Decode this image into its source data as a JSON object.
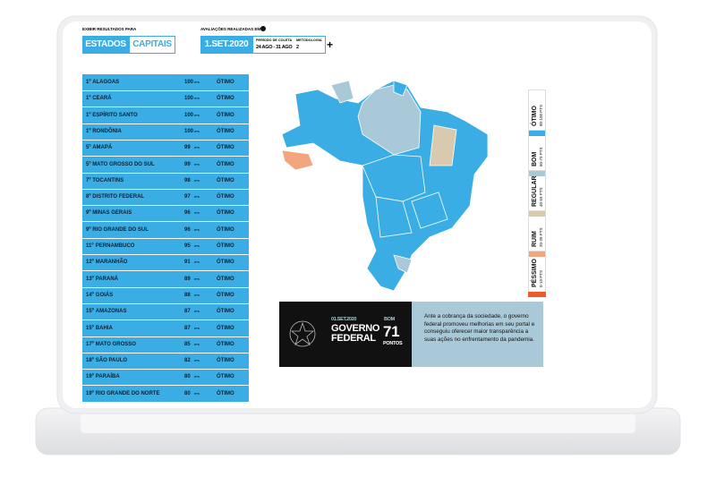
{
  "header": {
    "filter_label": "EXIBIR RESULTADOS PARA",
    "tabs": [
      "ESTADOS",
      "CAPITAIS"
    ],
    "dates_label": "AVALIAÇÕES REALIZADAS EM",
    "date": "1.SET.2020",
    "period_label": "PERÍODO DE COLETA",
    "period": "24 AGO - 31 AGO",
    "method_label": "METODOLOGIA",
    "method": "2",
    "more": "+"
  },
  "table": {
    "rows": [
      [
        "1º",
        "ALAGOAS",
        "100",
        "PTS",
        "ÓTIMO"
      ],
      [
        "1º",
        "CEARÁ",
        "100",
        "PTS",
        "ÓTIMO"
      ],
      [
        "1º",
        "ESPÍRITO SANTO",
        "100",
        "PTS",
        "ÓTIMO"
      ],
      [
        "1º",
        "RONDÔNIA",
        "100",
        "PTS",
        "ÓTIMO"
      ],
      [
        "5º",
        "AMAPÁ",
        "99",
        "PTS",
        "ÓTIMO"
      ],
      [
        "5º",
        "MATO GROSSO DO SUL",
        "99",
        "PTS",
        "ÓTIMO"
      ],
      [
        "7º",
        "TOCANTINS",
        "98",
        "PTS",
        "ÓTIMO"
      ],
      [
        "8º",
        "DISTRITO FEDERAL",
        "97",
        "PTS",
        "ÓTIMO"
      ],
      [
        "9º",
        "MINAS GERAIS",
        "96",
        "PTS",
        "ÓTIMO"
      ],
      [
        "9º",
        "RIO GRANDE DO SUL",
        "96",
        "PTS",
        "ÓTIMO"
      ],
      [
        "11º",
        "PERNAMBUCO",
        "95",
        "PTS",
        "ÓTIMO"
      ],
      [
        "12º",
        "MARANHÃO",
        "91",
        "PTS",
        "ÓTIMO"
      ],
      [
        "13º",
        "PARANÁ",
        "89",
        "PTS",
        "ÓTIMO"
      ],
      [
        "14º",
        "GOIÁS",
        "88",
        "PTS",
        "ÓTIMO"
      ],
      [
        "15º",
        "AMAZONAS",
        "87",
        "PTS",
        "ÓTIMO"
      ],
      [
        "15º",
        "BAHIA",
        "87",
        "PTS",
        "ÓTIMO"
      ],
      [
        "17º",
        "MATO GROSSO",
        "85",
        "PTS",
        "ÓTIMO"
      ],
      [
        "18º",
        "SÃO PAULO",
        "82",
        "PTS",
        "ÓTIMO"
      ],
      [
        "19º",
        "PARAÍBA",
        "80",
        "PTS",
        "ÓTIMO"
      ],
      [
        "19º",
        "RIO GRANDE DO NORTE",
        "80",
        "PTS",
        "ÓTIMO"
      ]
    ]
  },
  "legend": [
    {
      "label": "ÓTIMO",
      "range": "80-100 PTS",
      "color": "#3aaee4"
    },
    {
      "label": "BOM",
      "range": "60-79 PTS",
      "color": "#a9c9d8"
    },
    {
      "label": "REGULAR",
      "range": "40-59 PTS",
      "color": "#d9c9ae"
    },
    {
      "label": "RUIM",
      "range": "20-39 PTS",
      "color": "#f2a57f"
    },
    {
      "label": "PÉSSIMO",
      "range": "0-19 PTS",
      "color": "#f05a28"
    }
  ],
  "federal": {
    "date": "01.SET.2020",
    "name": "GOVERNO FEDERAL",
    "rating": "BOM",
    "score": "71",
    "unit": "PONTOS",
    "text": "Ante a cobrança da sociedade, o governo federal promoveu melhorias em seu portal e conseguiu oferecer maior transparência a suas ações no enfrentamento da pandemia."
  }
}
